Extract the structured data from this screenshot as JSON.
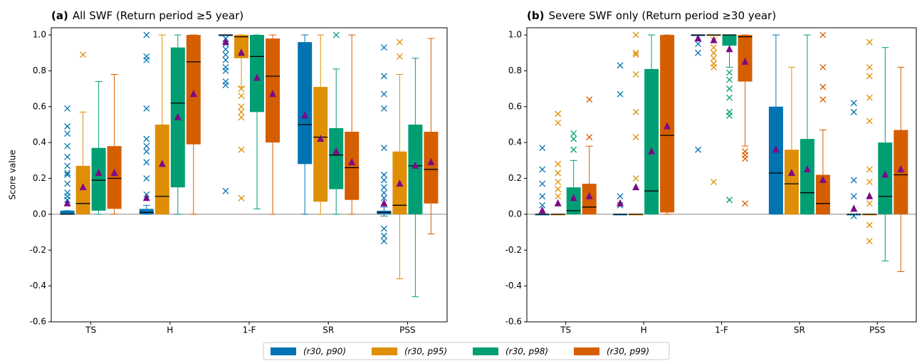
{
  "chart_data": [
    {
      "type": "box",
      "label": "(a)",
      "title": "All SWF (Return period ≥5 year)",
      "ylabel": "Score value",
      "categories": [
        "TS",
        "H",
        "1-F",
        "SR",
        "PSS"
      ],
      "ylim": [
        -0.6,
        1.04
      ],
      "yticks": [
        -0.6,
        -0.4,
        -0.2,
        {
          "value": 0,
          "label": "0.0"
        },
        0.2,
        0.4,
        0.6,
        0.8,
        {
          "value": 1,
          "label": "1.0"
        }
      ],
      "mean_color": "#7b0a86",
      "series": [
        {
          "name": "(r30, p90)",
          "color": "#0173b2",
          "values": [
            {
              "whislo": 0,
              "q1": 0,
              "med": 0,
              "q3": 0.02,
              "whishi": 0.02,
              "mean": 0.06,
              "fliers": [
                0.59,
                0.49,
                0.45,
                0.38,
                0.32,
                0.27,
                0.23,
                0.22,
                0.17,
                0.12,
                0.1,
                0.08
              ]
            },
            {
              "whislo": 0,
              "q1": 0,
              "med": 0.01,
              "q3": 0.03,
              "whishi": 0.05,
              "mean": 0.09,
              "fliers": [
                1.0,
                0.88,
                0.86,
                0.59,
                0.42,
                0.38,
                0.35,
                0.29,
                0.2,
                0.11
              ]
            },
            {
              "whislo": 1,
              "q1": 1,
              "med": 1,
              "q3": 1,
              "whishi": 1,
              "mean": 0.96,
              "fliers": [
                0.98,
                0.95,
                0.92,
                0.89,
                0.86,
                0.82,
                0.8,
                0.74,
                0.72,
                0.13
              ]
            },
            {
              "whislo": 0,
              "q1": 0.28,
              "med": 0.5,
              "q3": 0.96,
              "whishi": 1,
              "mean": 0.55,
              "fliers": []
            },
            {
              "whislo": -0.01,
              "q1": 0,
              "med": 0.01,
              "q3": 0.02,
              "whishi": 0.04,
              "mean": 0.06,
              "fliers": [
                0.93,
                0.77,
                0.67,
                0.59,
                0.37,
                0.22,
                0.19,
                0.15,
                0.12,
                0.09,
                -0.08,
                -0.12,
                -0.15
              ]
            }
          ]
        },
        {
          "name": "(r30, p95)",
          "color": "#de8f05",
          "values": [
            {
              "whislo": 0,
              "q1": 0,
              "med": 0.06,
              "q3": 0.27,
              "whishi": 0.57,
              "mean": 0.15,
              "fliers": [
                0.89
              ]
            },
            {
              "whislo": 0,
              "q1": 0,
              "med": 0.1,
              "q3": 0.5,
              "whishi": 1,
              "mean": 0.28,
              "fliers": []
            },
            {
              "whislo": 0.71,
              "q1": 0.87,
              "med": 0.99,
              "q3": 1,
              "whishi": 1,
              "mean": 0.9,
              "fliers": [
                0.7,
                0.66,
                0.6,
                0.57,
                0.54,
                0.36,
                0.09
              ]
            },
            {
              "whislo": 0,
              "q1": 0.07,
              "med": 0.43,
              "q3": 0.71,
              "whishi": 1,
              "mean": 0.42,
              "fliers": []
            },
            {
              "whislo": -0.36,
              "q1": 0,
              "med": 0.05,
              "q3": 0.35,
              "whishi": 0.78,
              "mean": 0.17,
              "fliers": [
                0.96,
                0.88
              ]
            }
          ]
        },
        {
          "name": "(r30, p98)",
          "color": "#029e73",
          "values": [
            {
              "whislo": 0,
              "q1": 0.02,
              "med": 0.19,
              "q3": 0.37,
              "whishi": 0.74,
              "mean": 0.23,
              "fliers": []
            },
            {
              "whislo": 0,
              "q1": 0.15,
              "med": 0.62,
              "q3": 0.93,
              "whishi": 1,
              "mean": 0.54,
              "fliers": []
            },
            {
              "whislo": 0.03,
              "q1": 0.57,
              "med": 0.88,
              "q3": 1,
              "whishi": 1,
              "mean": 0.76,
              "fliers": []
            },
            {
              "whislo": 0,
              "q1": 0.14,
              "med": 0.33,
              "q3": 0.48,
              "whishi": 0.81,
              "mean": 0.35,
              "fliers": [
                1.0
              ]
            },
            {
              "whislo": -0.46,
              "q1": 0,
              "med": 0.27,
              "q3": 0.5,
              "whishi": 0.87,
              "mean": 0.27,
              "fliers": []
            }
          ]
        },
        {
          "name": "(r30, p99)",
          "color": "#d55e00",
          "values": [
            {
              "whislo": 0,
              "q1": 0.03,
              "med": 0.2,
              "q3": 0.38,
              "whishi": 0.78,
              "mean": 0.23,
              "fliers": []
            },
            {
              "whislo": 0,
              "q1": 0.39,
              "med": 0.85,
              "q3": 1,
              "whishi": 1,
              "mean": 0.67,
              "fliers": []
            },
            {
              "whislo": 0,
              "q1": 0.4,
              "med": 0.77,
              "q3": 0.98,
              "whishi": 1,
              "mean": 0.67,
              "fliers": []
            },
            {
              "whislo": 0,
              "q1": 0.08,
              "med": 0.26,
              "q3": 0.46,
              "whishi": 1,
              "mean": 0.29,
              "fliers": []
            },
            {
              "whislo": -0.11,
              "q1": 0.06,
              "med": 0.25,
              "q3": 0.46,
              "whishi": 0.98,
              "mean": 0.29,
              "fliers": []
            }
          ]
        }
      ]
    },
    {
      "type": "box",
      "label": "(b)",
      "title": "Severe SWF only (Return period ≥30 year)",
      "categories": [
        "TS",
        "H",
        "1-F",
        "SR",
        "PSS"
      ],
      "ylim": [
        -0.6,
        1.04
      ],
      "yticks": [
        -0.6,
        -0.4,
        -0.2,
        {
          "value": 0,
          "label": "0.0"
        },
        0.2,
        0.4,
        0.6,
        0.8,
        {
          "value": 1,
          "label": "1.0"
        }
      ],
      "mean_color": "#7b0a86",
      "series": [
        {
          "color": "#0173b2",
          "values": [
            {
              "whislo": 0,
              "q1": 0,
              "med": 0,
              "q3": 0,
              "whishi": 0,
              "mean": 0.02,
              "fliers": [
                0.37,
                0.25,
                0.17,
                0.1,
                0.05
              ]
            },
            {
              "whislo": 0,
              "q1": 0,
              "med": 0,
              "q3": 0,
              "whishi": 0,
              "mean": 0.06,
              "fliers": [
                0.83,
                0.67,
                0.1,
                0.05
              ]
            },
            {
              "whislo": 1,
              "q1": 1,
              "med": 1,
              "q3": 1,
              "whishi": 1,
              "mean": 0.98,
              "fliers": [
                0.95,
                0.9,
                0.36
              ]
            },
            {
              "whislo": 0,
              "q1": 0,
              "med": 0.23,
              "q3": 0.6,
              "whishi": 1,
              "mean": 0.36,
              "fliers": []
            },
            {
              "whislo": 0,
              "q1": 0,
              "med": 0,
              "q3": 0,
              "whishi": 0,
              "mean": 0.03,
              "fliers": [
                0.62,
                0.57,
                0.19,
                0.1,
                -0.01
              ]
            }
          ]
        },
        {
          "color": "#de8f05",
          "values": [
            {
              "whislo": 0,
              "q1": 0,
              "med": 0,
              "q3": 0,
              "whishi": 0,
              "mean": 0.06,
              "fliers": [
                0.56,
                0.51,
                0.28,
                0.23,
                0.18,
                0.14,
                0.1
              ]
            },
            {
              "whislo": 0,
              "q1": 0,
              "med": 0,
              "q3": 0,
              "whishi": 0,
              "mean": 0.15,
              "fliers": [
                1.0,
                0.9,
                0.89,
                0.78,
                0.57,
                0.43,
                0.2
              ]
            },
            {
              "whislo": 1,
              "q1": 1,
              "med": 1,
              "q3": 1,
              "whishi": 1,
              "mean": 0.97,
              "fliers": [
                0.97,
                0.93,
                0.9,
                0.87,
                0.84,
                0.82,
                0.18
              ]
            },
            {
              "whislo": 0,
              "q1": 0,
              "med": 0.17,
              "q3": 0.36,
              "whishi": 0.82,
              "mean": 0.23,
              "fliers": []
            },
            {
              "whislo": 0,
              "q1": 0,
              "med": 0,
              "q3": 0,
              "whishi": 0,
              "mean": 0.1,
              "fliers": [
                0.96,
                0.82,
                0.77,
                0.65,
                0.52,
                0.25,
                0.18,
                0.06,
                -0.06,
                -0.15
              ]
            }
          ]
        },
        {
          "color": "#029e73",
          "values": [
            {
              "whislo": 0,
              "q1": 0,
              "med": 0.02,
              "q3": 0.15,
              "whishi": 0.3,
              "mean": 0.09,
              "fliers": [
                0.45,
                0.42,
                0.36
              ]
            },
            {
              "whislo": 0,
              "q1": 0,
              "med": 0.13,
              "q3": 0.81,
              "whishi": 1,
              "mean": 0.35,
              "fliers": []
            },
            {
              "whislo": 0.82,
              "q1": 0.94,
              "med": 1,
              "q3": 1,
              "whishi": 1,
              "mean": 0.92,
              "fliers": [
                0.79,
                0.75,
                0.7,
                0.65,
                0.57,
                0.55,
                0.08
              ]
            },
            {
              "whislo": 0,
              "q1": 0,
              "med": 0.12,
              "q3": 0.42,
              "whishi": 1,
              "mean": 0.25,
              "fliers": []
            },
            {
              "whislo": -0.26,
              "q1": 0,
              "med": 0.1,
              "q3": 0.4,
              "whishi": 0.93,
              "mean": 0.22,
              "fliers": []
            }
          ]
        },
        {
          "color": "#d55e00",
          "values": [
            {
              "whislo": 0,
              "q1": 0,
              "med": 0.04,
              "q3": 0.17,
              "whishi": 0.38,
              "mean": 0.1,
              "fliers": [
                0.64,
                0.43
              ]
            },
            {
              "whislo": 0,
              "q1": 0.01,
              "med": 0.44,
              "q3": 1,
              "whishi": 1,
              "mean": 0.49,
              "fliers": []
            },
            {
              "whislo": 0.38,
              "q1": 0.74,
              "med": 0.99,
              "q3": 1,
              "whishi": 1,
              "mean": 0.85,
              "fliers": [
                0.35,
                0.33,
                0.31,
                0.06
              ]
            },
            {
              "whislo": 0,
              "q1": 0,
              "med": 0.06,
              "q3": 0.22,
              "whishi": 0.47,
              "mean": 0.19,
              "fliers": [
                1.0,
                0.82,
                0.71,
                0.64
              ]
            },
            {
              "whislo": -0.32,
              "q1": 0,
              "med": 0.22,
              "q3": 0.47,
              "whishi": 0.82,
              "mean": 0.25,
              "fliers": []
            }
          ]
        }
      ]
    }
  ]
}
